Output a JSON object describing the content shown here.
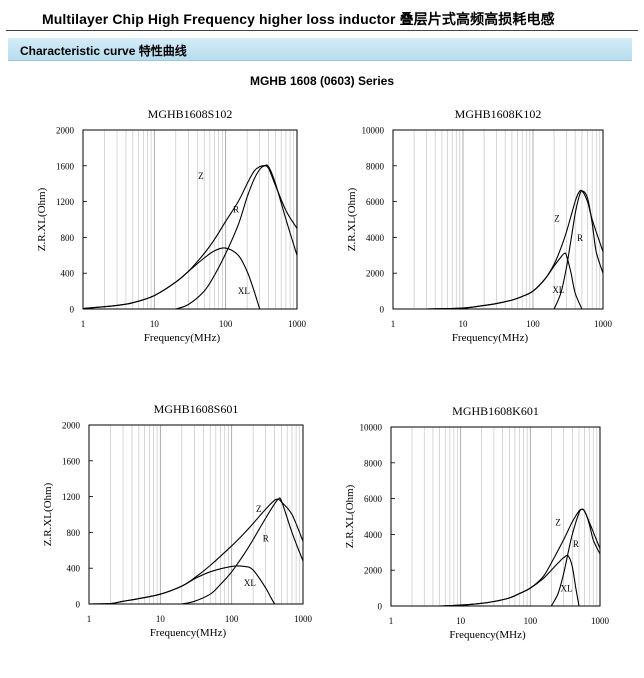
{
  "header": {
    "title": "Multilayer Chip High Frequency higher loss inductor 叠层片式高频高损耗电感"
  },
  "section": {
    "label": "Characteristic curve 特性曲线"
  },
  "series_title": "MGHB 1608 (0603) Series",
  "chart_data": [
    {
      "type": "line",
      "title": "MGHB1608S102",
      "xlabel": "Frequency(MHz)",
      "ylabel": "Z.R.XL(Ohm)",
      "xscale": "log",
      "xlim": [
        1,
        1000
      ],
      "ylim": [
        0,
        2000
      ],
      "x_ticks": [
        "1",
        "10",
        "100",
        "1000"
      ],
      "y_ticks": [
        "0",
        "400",
        "800",
        "1200",
        "1600",
        "2000"
      ],
      "grid": "vertical",
      "series": [
        {
          "name": "Z",
          "x": [
            1,
            3,
            5,
            10,
            20,
            30,
            50,
            70,
            100,
            150,
            200,
            250,
            300,
            350,
            400,
            500,
            700,
            1000
          ],
          "y": [
            5,
            40,
            70,
            150,
            300,
            420,
            620,
            780,
            980,
            1200,
            1400,
            1540,
            1590,
            1600,
            1570,
            1380,
            1100,
            900
          ]
        },
        {
          "name": "R",
          "x": [
            20,
            30,
            50,
            70,
            100,
            150,
            200,
            250,
            300,
            350,
            400,
            500,
            700,
            1000
          ],
          "y": [
            0,
            50,
            200,
            380,
            620,
            940,
            1250,
            1450,
            1560,
            1600,
            1590,
            1400,
            1000,
            600
          ]
        },
        {
          "name": "XL",
          "x": [
            1,
            3,
            5,
            10,
            20,
            30,
            50,
            70,
            100,
            150,
            200,
            250,
            300
          ],
          "y": [
            5,
            40,
            70,
            150,
            300,
            420,
            570,
            650,
            680,
            600,
            420,
            200,
            0
          ]
        }
      ]
    },
    {
      "type": "line",
      "title": "MGHB1608K102",
      "xlabel": "Frequency(MHz)",
      "ylabel": "Z.R.XL(Ohm)",
      "xscale": "log",
      "xlim": [
        1,
        1000
      ],
      "ylim": [
        0,
        10000
      ],
      "x_ticks": [
        "1",
        "10",
        "100",
        "1000"
      ],
      "y_ticks": [
        "0",
        "2000",
        "4000",
        "6000",
        "8000",
        "10000"
      ],
      "grid": "vertical",
      "series": [
        {
          "name": "Z",
          "x": [
            3,
            10,
            20,
            30,
            50,
            70,
            100,
            150,
            200,
            250,
            300,
            400,
            450,
            500,
            600,
            700,
            1000
          ],
          "y": [
            0,
            50,
            200,
            300,
            500,
            700,
            1000,
            1700,
            2500,
            3400,
            4300,
            6000,
            6500,
            6600,
            6000,
            5000,
            3200
          ]
        },
        {
          "name": "R",
          "x": [
            200,
            250,
            300,
            350,
            400,
            450,
            500,
            600,
            700,
            800,
            1000
          ],
          "y": [
            0,
            900,
            2300,
            3900,
            5300,
            6200,
            6600,
            6200,
            4800,
            3200,
            2000
          ]
        },
        {
          "name": "XL",
          "x": [
            3,
            10,
            20,
            30,
            50,
            70,
            100,
            150,
            200,
            250,
            280,
            300,
            350,
            400,
            500
          ],
          "y": [
            0,
            50,
            200,
            300,
            500,
            700,
            1000,
            1700,
            2400,
            2900,
            3100,
            3000,
            2000,
            900,
            0
          ]
        }
      ]
    },
    {
      "type": "line",
      "title": "MGHB1608S601",
      "xlabel": "Frequency(MHz)",
      "ylabel": "Z.R.XL(Ohm)",
      "xscale": "log",
      "xlim": [
        1,
        1000
      ],
      "ylim": [
        0,
        2000
      ],
      "x_ticks": [
        "1",
        "10",
        "100",
        "1000"
      ],
      "y_ticks": [
        "0",
        "400",
        "800",
        "1200",
        "1600",
        "2000"
      ],
      "grid": "vertical",
      "series": [
        {
          "name": "Z",
          "x": [
            1,
            2,
            3,
            5,
            10,
            20,
            30,
            50,
            100,
            150,
            200,
            300,
            400,
            450,
            500,
            700,
            1000
          ],
          "y": [
            0,
            5,
            30,
            60,
            110,
            200,
            290,
            430,
            650,
            790,
            900,
            1060,
            1160,
            1170,
            1140,
            1000,
            700
          ]
        },
        {
          "name": "R",
          "x": [
            20,
            30,
            50,
            70,
            100,
            150,
            200,
            300,
            400,
            450,
            500,
            700,
            1000
          ],
          "y": [
            0,
            30,
            110,
            220,
            360,
            560,
            720,
            960,
            1120,
            1170,
            1150,
            800,
            480
          ]
        },
        {
          "name": "XL",
          "x": [
            1,
            2,
            3,
            5,
            10,
            20,
            30,
            50,
            100,
            150,
            200,
            300,
            350,
            400
          ],
          "y": [
            0,
            5,
            30,
            60,
            110,
            200,
            280,
            360,
            420,
            420,
            380,
            180,
            80,
            0
          ]
        }
      ]
    },
    {
      "type": "line",
      "title": "MGHB1608K601",
      "xlabel": "Frequency(MHz)",
      "ylabel": "Z.R.XL(Ohm)",
      "xscale": "log",
      "xlim": [
        1,
        1000
      ],
      "ylim": [
        0,
        10000
      ],
      "x_ticks": [
        "1",
        "10",
        "100",
        "1000"
      ],
      "y_ticks": [
        "0",
        "2000",
        "4000",
        "6000",
        "8000",
        "10000"
      ],
      "grid": "vertical",
      "series": [
        {
          "name": "Z",
          "x": [
            5,
            10,
            20,
            30,
            50,
            70,
            100,
            150,
            200,
            300,
            400,
            500,
            550,
            600,
            700,
            1000
          ],
          "y": [
            0,
            50,
            150,
            250,
            450,
            700,
            1000,
            1600,
            2400,
            3700,
            4700,
            5300,
            5400,
            5300,
            4700,
            3200
          ]
        },
        {
          "name": "R",
          "x": [
            200,
            250,
            300,
            350,
            400,
            500,
            550,
            600,
            700,
            800,
            1000
          ],
          "y": [
            0,
            700,
            1800,
            3000,
            4000,
            5200,
            5400,
            5300,
            4600,
            3700,
            2900
          ]
        },
        {
          "name": "XL",
          "x": [
            5,
            10,
            20,
            30,
            50,
            70,
            100,
            150,
            200,
            250,
            300,
            350,
            400,
            450,
            500
          ],
          "y": [
            0,
            50,
            150,
            250,
            450,
            700,
            1000,
            1500,
            2000,
            2400,
            2700,
            2800,
            2200,
            1000,
            0
          ]
        }
      ]
    }
  ]
}
